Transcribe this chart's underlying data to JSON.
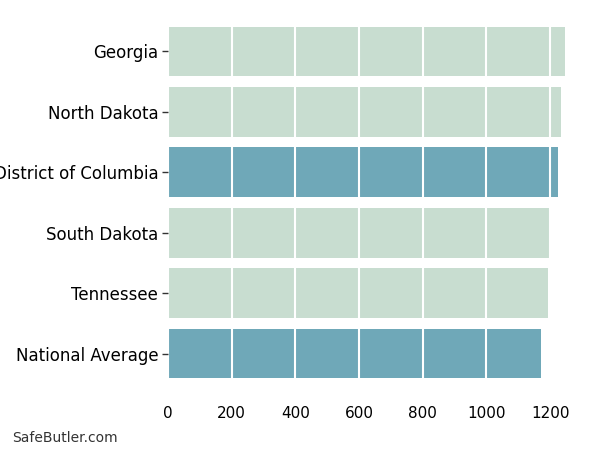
{
  "categories": [
    "National Average",
    "Tennessee",
    "South Dakota",
    "District of Columbia",
    "North Dakota",
    "Georgia"
  ],
  "values": [
    1172,
    1192,
    1200,
    1224,
    1233,
    1247
  ],
  "bar_colors": [
    "#6fa8b8",
    "#c8ddd0",
    "#c8ddd0",
    "#6fa8b8",
    "#c8ddd0",
    "#c8ddd0"
  ],
  "background_color": "#ffffff",
  "grid_color": "#ffffff",
  "axes_bg_color": "#ffffff",
  "xlim": [
    0,
    1300
  ],
  "tick_fontsize": 11,
  "label_fontsize": 12,
  "watermark": "SafeButler.com",
  "bar_height": 0.82
}
